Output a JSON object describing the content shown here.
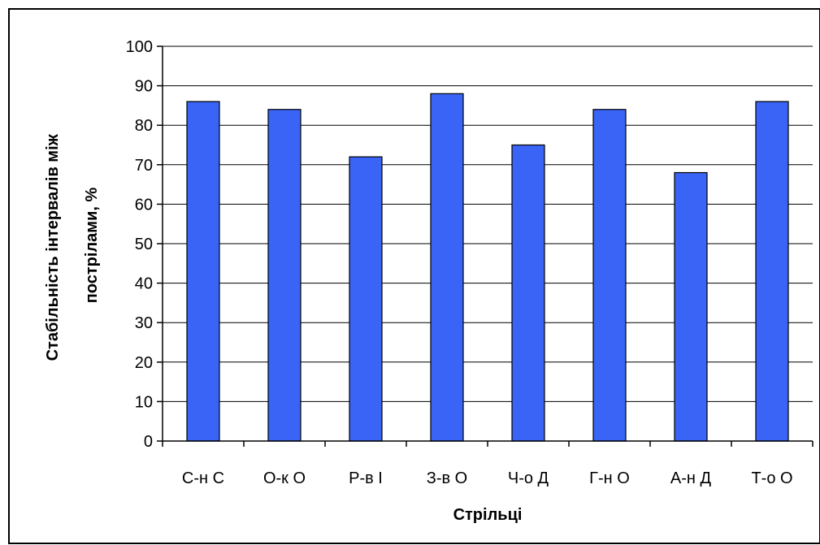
{
  "chart_data": {
    "type": "bar",
    "categories": [
      "С-н С",
      "О-к О",
      "Р-в І",
      "З-в О",
      "Ч-о Д",
      "Г-н О",
      "А-н Д",
      "Т-о О"
    ],
    "values": [
      86,
      84,
      72,
      88,
      75,
      84,
      68,
      86
    ],
    "xlabel": "Стрільці",
    "ylabel_lines": [
      "Стабільність інтервалів між",
      "пострілами, %"
    ],
    "ylim": [
      0,
      100
    ],
    "yticks": [
      0,
      10,
      20,
      30,
      40,
      50,
      60,
      70,
      80,
      90,
      100
    ],
    "grid": true,
    "legend": "none",
    "bar_color": "#3A64F5",
    "bar_edge_color": "#000000"
  }
}
